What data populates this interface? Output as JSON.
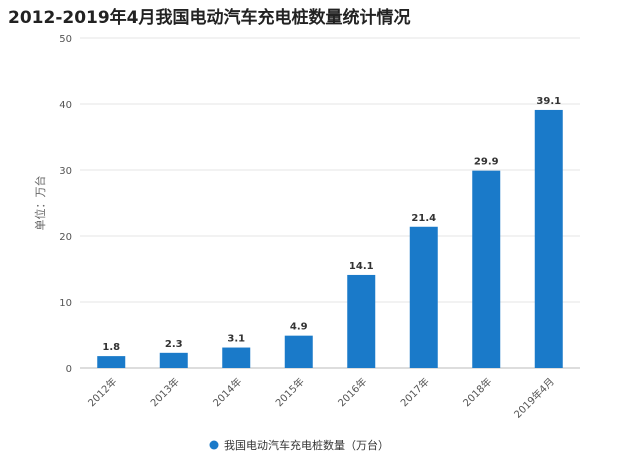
{
  "title": "2012-2019年4月我国电动汽车充电桩数量统计情况",
  "chart_data": {
    "type": "bar",
    "categories": [
      "2012年",
      "2013年",
      "2014年",
      "2015年",
      "2016年",
      "2017年",
      "2018年",
      "2019年4月"
    ],
    "series": [
      {
        "name": "我国电动汽车充电桩数量（万台）",
        "values": [
          1.8,
          2.3,
          3.1,
          4.9,
          14.1,
          21.4,
          29.9,
          39.1
        ]
      }
    ],
    "data_labels": [
      "1.8",
      "2.3",
      "3.1",
      "4.9",
      "14.1",
      "21.4",
      "29.9",
      "39.1"
    ],
    "ylabel": "单位：万台",
    "ylim": [
      0,
      50
    ],
    "yticks": [
      0,
      10,
      20,
      30,
      40,
      50
    ],
    "grid": true,
    "legend_position": "bottom",
    "bar_color": "#1a7ac9"
  }
}
